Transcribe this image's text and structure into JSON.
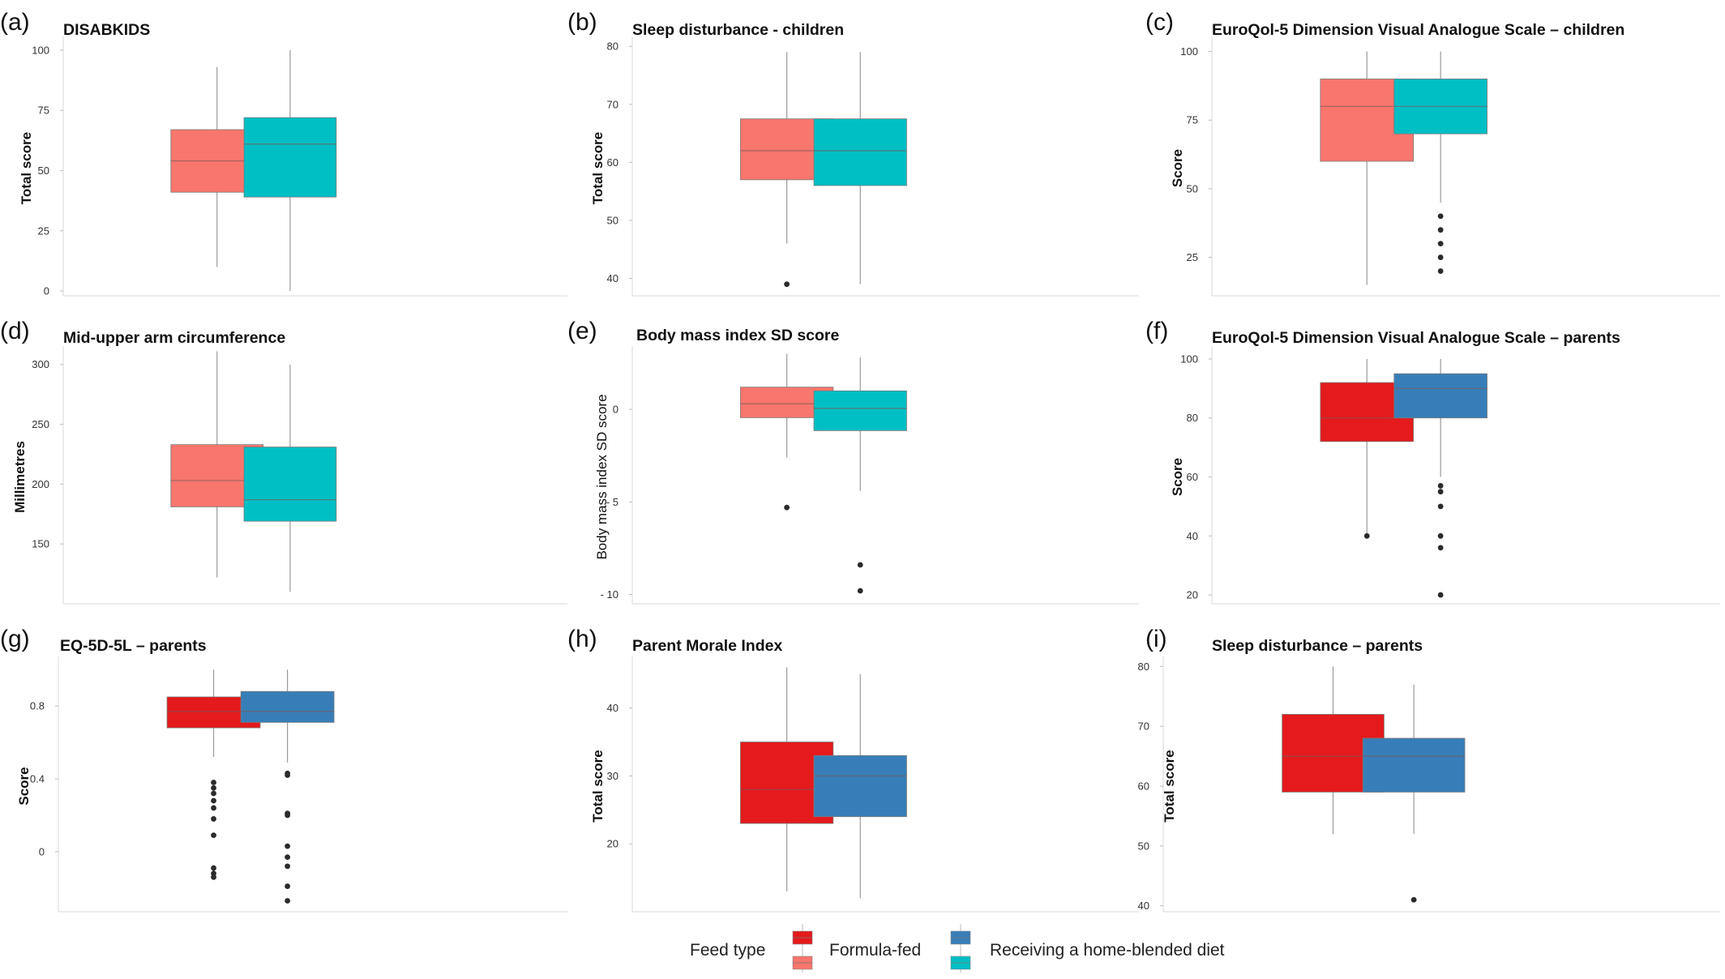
{
  "legend": {
    "title": "Feed type",
    "items": [
      {
        "label": "Formula-fed",
        "colors": [
          "#e41a1c",
          "#f8766d"
        ]
      },
      {
        "label": "Receiving a home-blended diet",
        "colors": [
          "#377eb8",
          "#00bfc4"
        ]
      }
    ]
  },
  "chart_data": [
    {
      "type": "box",
      "letter": "(a)",
      "title": "DISABKIDS",
      "ylabel": "Total score",
      "ylim": [
        -2,
        104
      ],
      "yticks": [
        0,
        25,
        50,
        75,
        100
      ],
      "tick_labels": [
        "0",
        "25",
        "50",
        "75",
        "100"
      ],
      "series": [
        {
          "name": "Formula-fed",
          "color": "#f8766d",
          "whisker_low": 10,
          "q1": 41,
          "median": 54,
          "q3": 67,
          "whisker_high": 93,
          "outliers": []
        },
        {
          "name": "Receiving a home-blended diet",
          "color": "#00bfc4",
          "whisker_low": 0,
          "q1": 39,
          "median": 61,
          "q3": 72,
          "whisker_high": 100,
          "outliers": []
        }
      ]
    },
    {
      "type": "box",
      "letter": "(b)",
      "title": "Sleep disturbance - children",
      "ylabel": "Total score",
      "ylim": [
        37,
        81
      ],
      "yticks": [
        40,
        50,
        60,
        70,
        80
      ],
      "tick_labels": [
        "40",
        "50",
        "60",
        "70",
        "80"
      ],
      "series": [
        {
          "name": "Formula-fed",
          "color": "#f8766d",
          "whisker_low": 46,
          "q1": 57,
          "median": 62,
          "q3": 67.5,
          "whisker_high": 79,
          "outliers": [
            39
          ]
        },
        {
          "name": "Receiving a home-blended diet",
          "color": "#00bfc4",
          "whisker_low": 39,
          "q1": 56,
          "median": 62,
          "q3": 67.5,
          "whisker_high": 79,
          "outliers": []
        }
      ]
    },
    {
      "type": "box",
      "letter": "(c)",
      "title": "EuroQol-5 Dimension Visual Analogue Scale – children",
      "ylabel": "Score",
      "ylim": [
        11,
        104
      ],
      "yticks": [
        25,
        50,
        75,
        100
      ],
      "tick_labels": [
        "25",
        "50",
        "75",
        "100"
      ],
      "series": [
        {
          "name": "Formula-fed",
          "color": "#f8766d",
          "whisker_low": 15,
          "q1": 60,
          "median": 80,
          "q3": 90,
          "whisker_high": 100,
          "outliers": []
        },
        {
          "name": "Receiving a home-blended diet",
          "color": "#00bfc4",
          "whisker_low": 45,
          "q1": 70,
          "median": 80,
          "q3": 90,
          "whisker_high": 100,
          "outliers": [
            20,
            25,
            30,
            35,
            40
          ]
        }
      ]
    },
    {
      "type": "box",
      "letter": "(d)",
      "title": "Mid-upper arm circumference",
      "ylabel": "Millimetres",
      "ylim": [
        100,
        312
      ],
      "yticks": [
        150,
        200,
        250,
        300
      ],
      "tick_labels": [
        "150",
        "200",
        "250",
        "300"
      ],
      "series": [
        {
          "name": "Formula-fed",
          "color": "#f8766d",
          "whisker_low": 122,
          "q1": 181,
          "median": 203,
          "q3": 233,
          "whisker_high": 311,
          "outliers": []
        },
        {
          "name": "Receiving a home-blended diet",
          "color": "#00bfc4",
          "whisker_low": 110,
          "q1": 169,
          "median": 187,
          "q3": 231,
          "whisker_high": 300,
          "outliers": []
        }
      ]
    },
    {
      "type": "box",
      "letter": "(e)",
      "title": "Body mass index SD score",
      "ylabel": "Body mass index SD score",
      "ylabel_weight": "normal",
      "ylim": [
        -10.5,
        3.2
      ],
      "yticks": [
        -10,
        -5,
        0
      ],
      "tick_labels": [
        "- 10",
        "- 5",
        "0"
      ],
      "series": [
        {
          "name": "Formula-fed",
          "color": "#f8766d",
          "whisker_low": -2.6,
          "q1": -0.45,
          "median": 0.3,
          "q3": 1.2,
          "whisker_high": 3.0,
          "outliers": [
            -5.3
          ]
        },
        {
          "name": "Receiving a home-blended diet",
          "color": "#00bfc4",
          "whisker_low": -4.4,
          "q1": -1.15,
          "median": 0.05,
          "q3": 1.0,
          "whisker_high": 2.8,
          "outliers": [
            -8.4,
            -9.8
          ]
        }
      ]
    },
    {
      "type": "box",
      "letter": "(f)",
      "title": "EuroQol-5 Dimension Visual Analogue Scale – parents",
      "ylabel": "Score",
      "ylim": [
        17,
        103
      ],
      "yticks": [
        20,
        40,
        60,
        80,
        100
      ],
      "tick_labels": [
        "20",
        "40",
        "60",
        "80",
        "100"
      ],
      "series": [
        {
          "name": "Formula-fed",
          "color": "#e41a1c",
          "whisker_low": 40,
          "q1": 72,
          "median": 80,
          "q3": 92,
          "whisker_high": 100,
          "outliers": [
            40
          ]
        },
        {
          "name": "Receiving a home-blended diet",
          "color": "#377eb8",
          "whisker_low": 60,
          "q1": 80,
          "median": 90,
          "q3": 95,
          "whisker_high": 100,
          "outliers": [
            20,
            36,
            40,
            50,
            55,
            57
          ]
        }
      ]
    },
    {
      "type": "box",
      "letter": "(g)",
      "title": "EQ-5D-5L – parents",
      "ylabel": "Score",
      "ylim": [
        -0.33,
        1.05
      ],
      "yticks": [
        0,
        0.4,
        0.8
      ],
      "tick_labels": [
        "0",
        "0.4",
        "0.8"
      ],
      "series": [
        {
          "name": "Formula-fed",
          "color": "#e41a1c",
          "whisker_low": 0.52,
          "q1": 0.68,
          "median": 0.77,
          "q3": 0.85,
          "whisker_high": 1.0,
          "outliers": [
            0.38,
            0.35,
            0.32,
            0.28,
            0.24,
            0.18,
            0.09,
            -0.09,
            -0.12,
            -0.14
          ]
        },
        {
          "name": "Receiving a home-blended diet",
          "color": "#377eb8",
          "whisker_low": 0.49,
          "q1": 0.71,
          "median": 0.77,
          "q3": 0.88,
          "whisker_high": 1.0,
          "outliers": [
            0.43,
            0.42,
            0.21,
            0.2,
            0.03,
            -0.03,
            -0.08,
            -0.19,
            -0.27
          ]
        }
      ]
    },
    {
      "type": "box",
      "letter": "(h)",
      "title": "Parent Morale Index",
      "ylabel": "Total score",
      "ylim": [
        10,
        47
      ],
      "yticks": [
        20,
        30,
        40
      ],
      "tick_labels": [
        "20",
        "30",
        "40"
      ],
      "series": [
        {
          "name": "Formula-fed",
          "color": "#e41a1c",
          "whisker_low": 13,
          "q1": 23,
          "median": 28,
          "q3": 35,
          "whisker_high": 46,
          "outliers": []
        },
        {
          "name": "Receiving a home-blended diet",
          "color": "#377eb8",
          "whisker_low": 12,
          "q1": 24,
          "median": 30,
          "q3": 33,
          "whisker_high": 45,
          "outliers": []
        }
      ]
    },
    {
      "type": "box",
      "letter": "(i)",
      "title": "Sleep disturbance – parents",
      "ylabel": "Total score",
      "ylim": [
        39,
        81
      ],
      "yticks": [
        40,
        50,
        60,
        70,
        80
      ],
      "tick_labels": [
        "40",
        "50",
        "60",
        "70",
        "80"
      ],
      "series": [
        {
          "name": "Formula-fed",
          "color": "#e41a1c",
          "whisker_low": 52,
          "q1": 59,
          "median": 65,
          "q3": 72,
          "whisker_high": 80,
          "outliers": []
        },
        {
          "name": "Receiving a home-blended diet",
          "color": "#377eb8",
          "whisker_low": 52,
          "q1": 59,
          "median": 65,
          "q3": 68,
          "whisker_high": 77,
          "outliers": [
            41
          ]
        }
      ]
    }
  ]
}
